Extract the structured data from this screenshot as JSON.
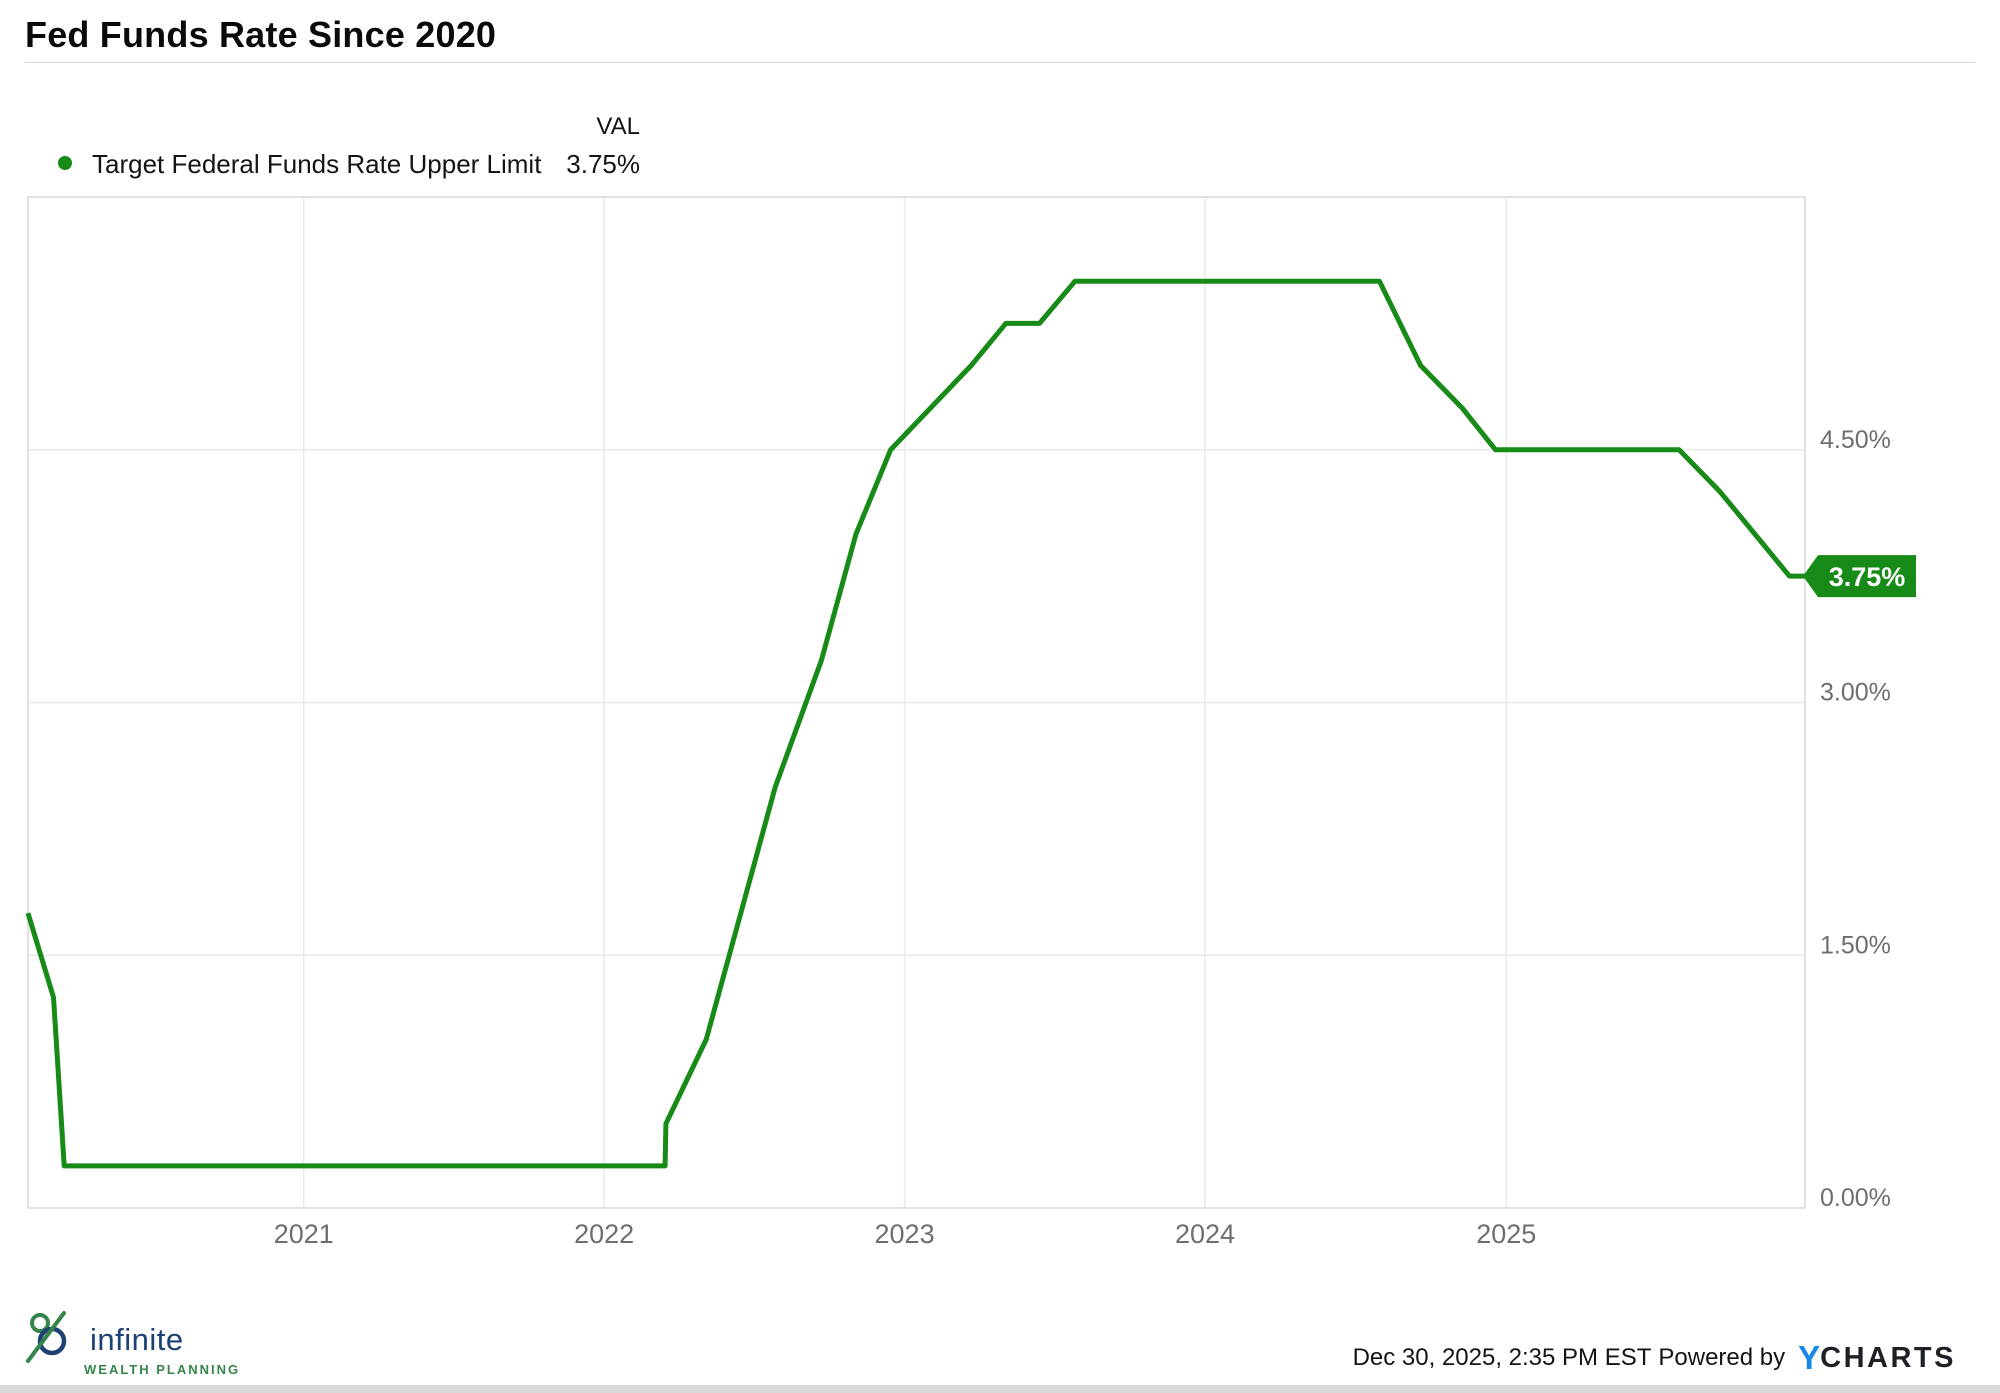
{
  "title": "Fed Funds Rate Since 2020",
  "legend": {
    "val_header": "VAL",
    "series_label": "Target Federal Funds Rate Upper Limit",
    "series_value": "3.75%"
  },
  "chart_data": {
    "type": "line",
    "title": "Fed Funds Rate Since 2020",
    "series": [
      {
        "name": "Target Federal Funds Rate Upper Limit",
        "color": "#178a17",
        "points": [
          [
            "2020-02-01",
            1.75
          ],
          [
            "2020-03-03",
            1.25
          ],
          [
            "2020-03-16",
            0.25
          ],
          [
            "2022-03-16",
            0.25
          ],
          [
            "2022-03-17",
            0.5
          ],
          [
            "2022-05-05",
            1.0
          ],
          [
            "2022-06-16",
            1.75
          ],
          [
            "2022-07-28",
            2.5
          ],
          [
            "2022-09-22",
            3.25
          ],
          [
            "2022-11-03",
            4.0
          ],
          [
            "2022-12-15",
            4.5
          ],
          [
            "2023-02-02",
            4.75
          ],
          [
            "2023-03-23",
            5.0
          ],
          [
            "2023-05-04",
            5.25
          ],
          [
            "2023-06-14",
            5.25
          ],
          [
            "2023-07-27",
            5.5
          ],
          [
            "2024-07-31",
            5.5
          ],
          [
            "2024-09-19",
            5.0
          ],
          [
            "2024-11-08",
            4.75
          ],
          [
            "2024-12-19",
            4.5
          ],
          [
            "2025-07-30",
            4.5
          ],
          [
            "2025-09-18",
            4.25
          ],
          [
            "2025-10-30",
            4.0
          ],
          [
            "2025-12-11",
            3.75
          ],
          [
            "2025-12-30",
            3.75
          ]
        ]
      }
    ],
    "x_domain": [
      "2020-02-01",
      "2025-12-30"
    ],
    "ylim": [
      0,
      6
    ],
    "y_ticks": [
      {
        "value": 4.5,
        "label": "4.50%"
      },
      {
        "value": 3.0,
        "label": "3.00%"
      },
      {
        "value": 1.5,
        "label": "1.50%"
      },
      {
        "value": 0.0,
        "label": "0.00%"
      }
    ],
    "x_ticks": [
      {
        "date": "2021-01-01",
        "label": "2021"
      },
      {
        "date": "2022-01-01",
        "label": "2022"
      },
      {
        "date": "2023-01-01",
        "label": "2023"
      },
      {
        "date": "2024-01-01",
        "label": "2024"
      },
      {
        "date": "2025-01-01",
        "label": "2025"
      }
    ],
    "grid": true,
    "legend_position": "top-left",
    "last_value_tag": "3.75%"
  },
  "footer": {
    "timestamp": "Dec 30, 2025, 2:35 PM EST",
    "powered_by": "Powered by",
    "ycharts_y": "Y",
    "ycharts_charts": "CHARTS"
  },
  "branding": {
    "logo_name": "infinite",
    "logo_tagline": "WEALTH PLANNING"
  },
  "colors": {
    "line": "#178a17",
    "tag_bg": "#178a17",
    "tag_text": "#ffffff",
    "grid": "#e9e9e9",
    "plot_border": "#d9d9d9",
    "tick_text": "#6e6e6e",
    "legend_dot": "#178a17",
    "brand_navy": "#1e4173",
    "brand_green": "#35854a"
  }
}
